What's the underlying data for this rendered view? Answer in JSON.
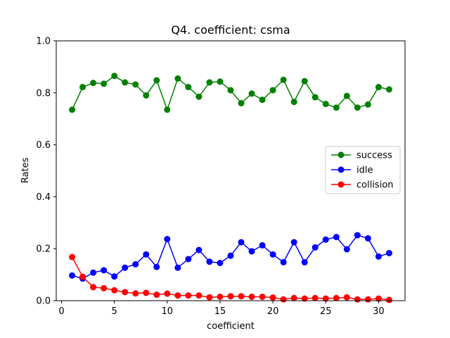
{
  "chart_data": {
    "type": "line",
    "title": "Q4. coefficient: csma",
    "xlabel": "coefficient",
    "ylabel": "Rates",
    "xlim": [
      -0.5,
      32.5
    ],
    "ylim": [
      0,
      1.0
    ],
    "xticks": [
      0,
      5,
      10,
      15,
      20,
      25,
      30
    ],
    "yticks": [
      0.0,
      0.2,
      0.4,
      0.6,
      0.8,
      1.0
    ],
    "xtick_labels": [
      "0",
      "5",
      "10",
      "15",
      "20",
      "25",
      "30"
    ],
    "ytick_labels": [
      "0.0",
      "0.2",
      "0.4",
      "0.6",
      "0.8",
      "1.0"
    ],
    "grid": false,
    "legend_position": "center-right",
    "x": [
      1,
      2,
      3,
      4,
      5,
      6,
      7,
      8,
      9,
      10,
      11,
      12,
      13,
      14,
      15,
      16,
      17,
      18,
      19,
      20,
      21,
      22,
      23,
      24,
      25,
      26,
      27,
      28,
      29,
      30,
      31
    ],
    "series": [
      {
        "name": "success",
        "color": "#008000",
        "values": [
          0.735,
          0.822,
          0.838,
          0.835,
          0.865,
          0.84,
          0.832,
          0.79,
          0.848,
          0.735,
          0.855,
          0.822,
          0.785,
          0.84,
          0.843,
          0.81,
          0.76,
          0.797,
          0.773,
          0.81,
          0.85,
          0.765,
          0.845,
          0.783,
          0.757,
          0.743,
          0.788,
          0.743,
          0.755,
          0.822,
          0.813
        ]
      },
      {
        "name": "idle",
        "color": "#0000ff",
        "values": [
          0.097,
          0.085,
          0.108,
          0.117,
          0.093,
          0.127,
          0.14,
          0.178,
          0.13,
          0.237,
          0.127,
          0.16,
          0.195,
          0.15,
          0.145,
          0.173,
          0.225,
          0.19,
          0.213,
          0.178,
          0.148,
          0.225,
          0.148,
          0.205,
          0.235,
          0.245,
          0.198,
          0.252,
          0.24,
          0.17,
          0.183
        ]
      },
      {
        "name": "collision",
        "color": "#ff0000",
        "values": [
          0.168,
          0.092,
          0.052,
          0.048,
          0.04,
          0.033,
          0.028,
          0.03,
          0.023,
          0.027,
          0.02,
          0.02,
          0.02,
          0.013,
          0.015,
          0.017,
          0.017,
          0.015,
          0.015,
          0.012,
          0.005,
          0.01,
          0.008,
          0.01,
          0.008,
          0.01,
          0.013,
          0.005,
          0.005,
          0.008,
          0.003
        ]
      }
    ]
  }
}
